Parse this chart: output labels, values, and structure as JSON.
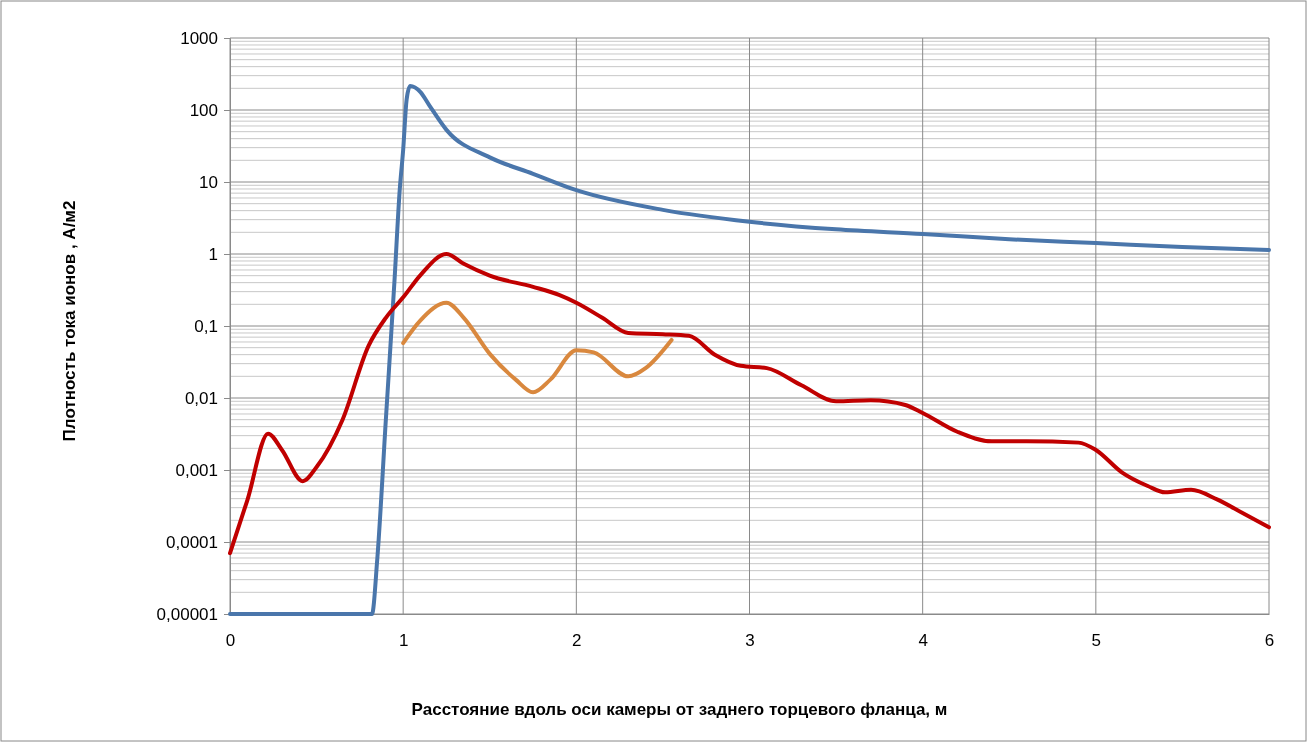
{
  "chart_data": {
    "type": "line",
    "xlabel": "Расстояние вдоль оси камеры от заднего торцевого фланца, м",
    "ylabel": "Плотность тока ионов , А/м2",
    "log": "y",
    "grid": true,
    "marker": "none",
    "line_style": "solid",
    "xlim": [
      0,
      6
    ],
    "xticks": [
      0,
      1,
      2,
      3,
      4,
      5,
      6
    ],
    "ylim": [
      1e-05,
      1000
    ],
    "yticks": [
      {
        "value": 1e-05,
        "label": "0,00001"
      },
      {
        "value": 0.0001,
        "label": "0,0001"
      },
      {
        "value": 0.001,
        "label": "0,001"
      },
      {
        "value": 0.01,
        "label": "0,01"
      },
      {
        "value": 0.1,
        "label": "0,1"
      },
      1,
      10,
      100,
      1000
    ],
    "series": [
      {
        "color": "#4a76ab",
        "x": [
          0,
          0.65,
          0.82,
          0.85,
          0.9,
          0.95,
          0.98,
          1.0,
          1.02,
          1.04,
          1.1,
          1.15,
          1.25,
          1.5,
          1.75,
          2,
          2.5,
          3,
          3.5,
          4,
          4.5,
          5,
          5.5,
          6
        ],
        "values": [
          1e-05,
          1e-05,
          1e-05,
          5.6e-05,
          0.005,
          0.43,
          7.7,
          28,
          140,
          215,
          177,
          117,
          53,
          22,
          13,
          7.7,
          4.1,
          2.8,
          2.2,
          1.9,
          1.6,
          1.42,
          1.25,
          1.14
        ]
      },
      {
        "color": "#c00000",
        "x": [
          0,
          0.1,
          0.22,
          0.3,
          0.42,
          0.5,
          0.65,
          0.8,
          0.9,
          1.0,
          1.1,
          1.25,
          1.35,
          1.5,
          1.75,
          1.9,
          2.0,
          2.15,
          2.3,
          2.5,
          2.65,
          2.8,
          2.95,
          3.1,
          3.3,
          3.5,
          3.7,
          3.9,
          4.0,
          4.2,
          4.4,
          4.6,
          4.9,
          5.0,
          5.15,
          5.3,
          5.4,
          5.55,
          5.7,
          5.85,
          6
        ],
        "values": [
          7e-05,
          0.00038,
          0.0032,
          0.0019,
          0.0007,
          0.0011,
          0.005,
          0.053,
          0.13,
          0.25,
          0.51,
          1.0,
          0.73,
          0.5,
          0.35,
          0.27,
          0.21,
          0.13,
          0.08,
          0.077,
          0.073,
          0.04,
          0.028,
          0.026,
          0.015,
          0.009,
          0.0093,
          0.008,
          0.0062,
          0.0034,
          0.0025,
          0.0025,
          0.0024,
          0.0019,
          0.00093,
          0.0006,
          0.00049,
          0.00053,
          0.00039,
          0.00025,
          0.00016
        ]
      },
      {
        "color": "#d9883e",
        "x": [
          1.0,
          1.1,
          1.25,
          1.35,
          1.5,
          1.65,
          1.75,
          1.85,
          2.0,
          2.1,
          2.3,
          2.4,
          2.55
        ],
        "values": [
          0.058,
          0.12,
          0.21,
          0.13,
          0.041,
          0.018,
          0.012,
          0.018,
          0.046,
          0.043,
          0.02,
          0.026,
          0.064
        ]
      }
    ]
  }
}
